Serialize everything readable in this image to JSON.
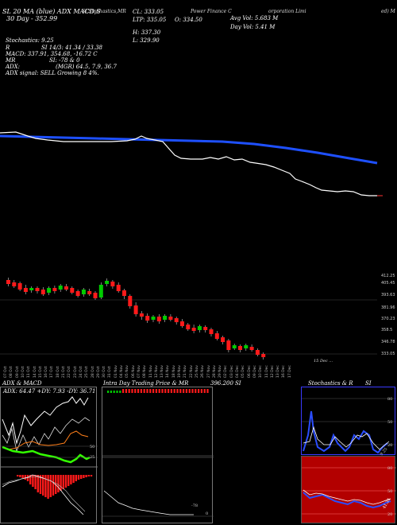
{
  "header": {
    "chart_line1": "SL 20 MA (blue) ADX MACD,S",
    "chart_line2": "30 Day - 352.99",
    "stoch_label": "SI,Stochastics,MR",
    "company_a": "Power Finance C",
    "company_b": "orporation Limi",
    "company_c": "ed) M",
    "cl_label": "CL: 333.05",
    "ltp_label": "LTP: 335.05",
    "open_label": "O: 334.50",
    "h_label": "H: 337.30",
    "l_label": "L: 329.90",
    "avg_vol": "Avg Vol: 5.683 M",
    "day_vol": "Day Vol: 5.41 M",
    "stochastics": "Stochastics: 9.25",
    "si_label": "SI 14/3: 41.34 / 33.38",
    "r_label": "R",
    "macd": "MACD: 337.91, 354.68, -16.72  C",
    "mr": "MR",
    "mr_vals": "SI: -78 & 0",
    "adx": "ADX:",
    "mgr": "(MGR) 64.5, 7.9, 36.7",
    "adx_signal": "ADX  signal: SELL Growing 8 4%."
  },
  "price_axis": [
    "412.25",
    "405.45",
    "393.63",
    "381.96",
    "370.23",
    "358.5",
    "346.78",
    "333.05"
  ],
  "date_labels": [
    "07 Oct",
    "08 Oct",
    "09 Oct",
    "10 Oct",
    "11 Oct",
    "14 Oct",
    "15 Oct",
    "16 Oct",
    "17 Oct",
    "18 Oct",
    "21 Oct",
    "22 Oct",
    "23 Oct",
    "24 Oct",
    "25 Oct",
    "28 Oct",
    "29 Oct",
    "30 Oct",
    "31 Oct",
    "01 Nov",
    "04 Nov",
    "05 Nov",
    "06 Nov",
    "07 Nov",
    "08 Nov",
    "11 Nov",
    "12 Nov",
    "13 Nov",
    "14 Nov",
    "18 Nov",
    "19 Nov",
    "21 Nov",
    "22 Nov",
    "25 Nov",
    "26 Nov",
    "27 Nov",
    "28 Nov",
    "29 Nov",
    "02 Dec",
    "03 Dec",
    "04 Dec",
    "05 Dec",
    "06 Dec",
    "09 Dec",
    "10 Dec",
    "11 Dec",
    "12 Dec",
    "13 Dec",
    "16 Dec",
    "17 Dec"
  ],
  "ie_note": "15 Dec ...",
  "panels": {
    "adx_title": "ADX  & MACD",
    "adx_values": "ADX: 64.47 +DY: 7.93 -DY: 36.71",
    "adx_levels": [
      "50",
      "25"
    ],
    "intraday_title": "Intra Day Trading Price  & MR",
    "intraday_price": "396.200",
    "intraday_si": "SI",
    "intraday_levels": [
      "-78",
      "0"
    ],
    "stoch_title": "Stochastics & R",
    "stoch_title_b": "SI",
    "stoch_levels": [
      "80",
      "50",
      "20"
    ],
    "rsi_levels": [
      "80",
      "50",
      "20"
    ],
    "stoch_point": "9.25",
    "rsi_point": "41.34"
  },
  "colors": {
    "bg": "#000000",
    "ma": "#1e50ff",
    "price": "#ffffff",
    "up": "#00cc00",
    "down": "#ff1a1a",
    "macd": "#ff7f1a",
    "adx_green": "#33ff00",
    "rsi_bg": "#cc0000",
    "stoch_border": "#3a3aff"
  }
}
